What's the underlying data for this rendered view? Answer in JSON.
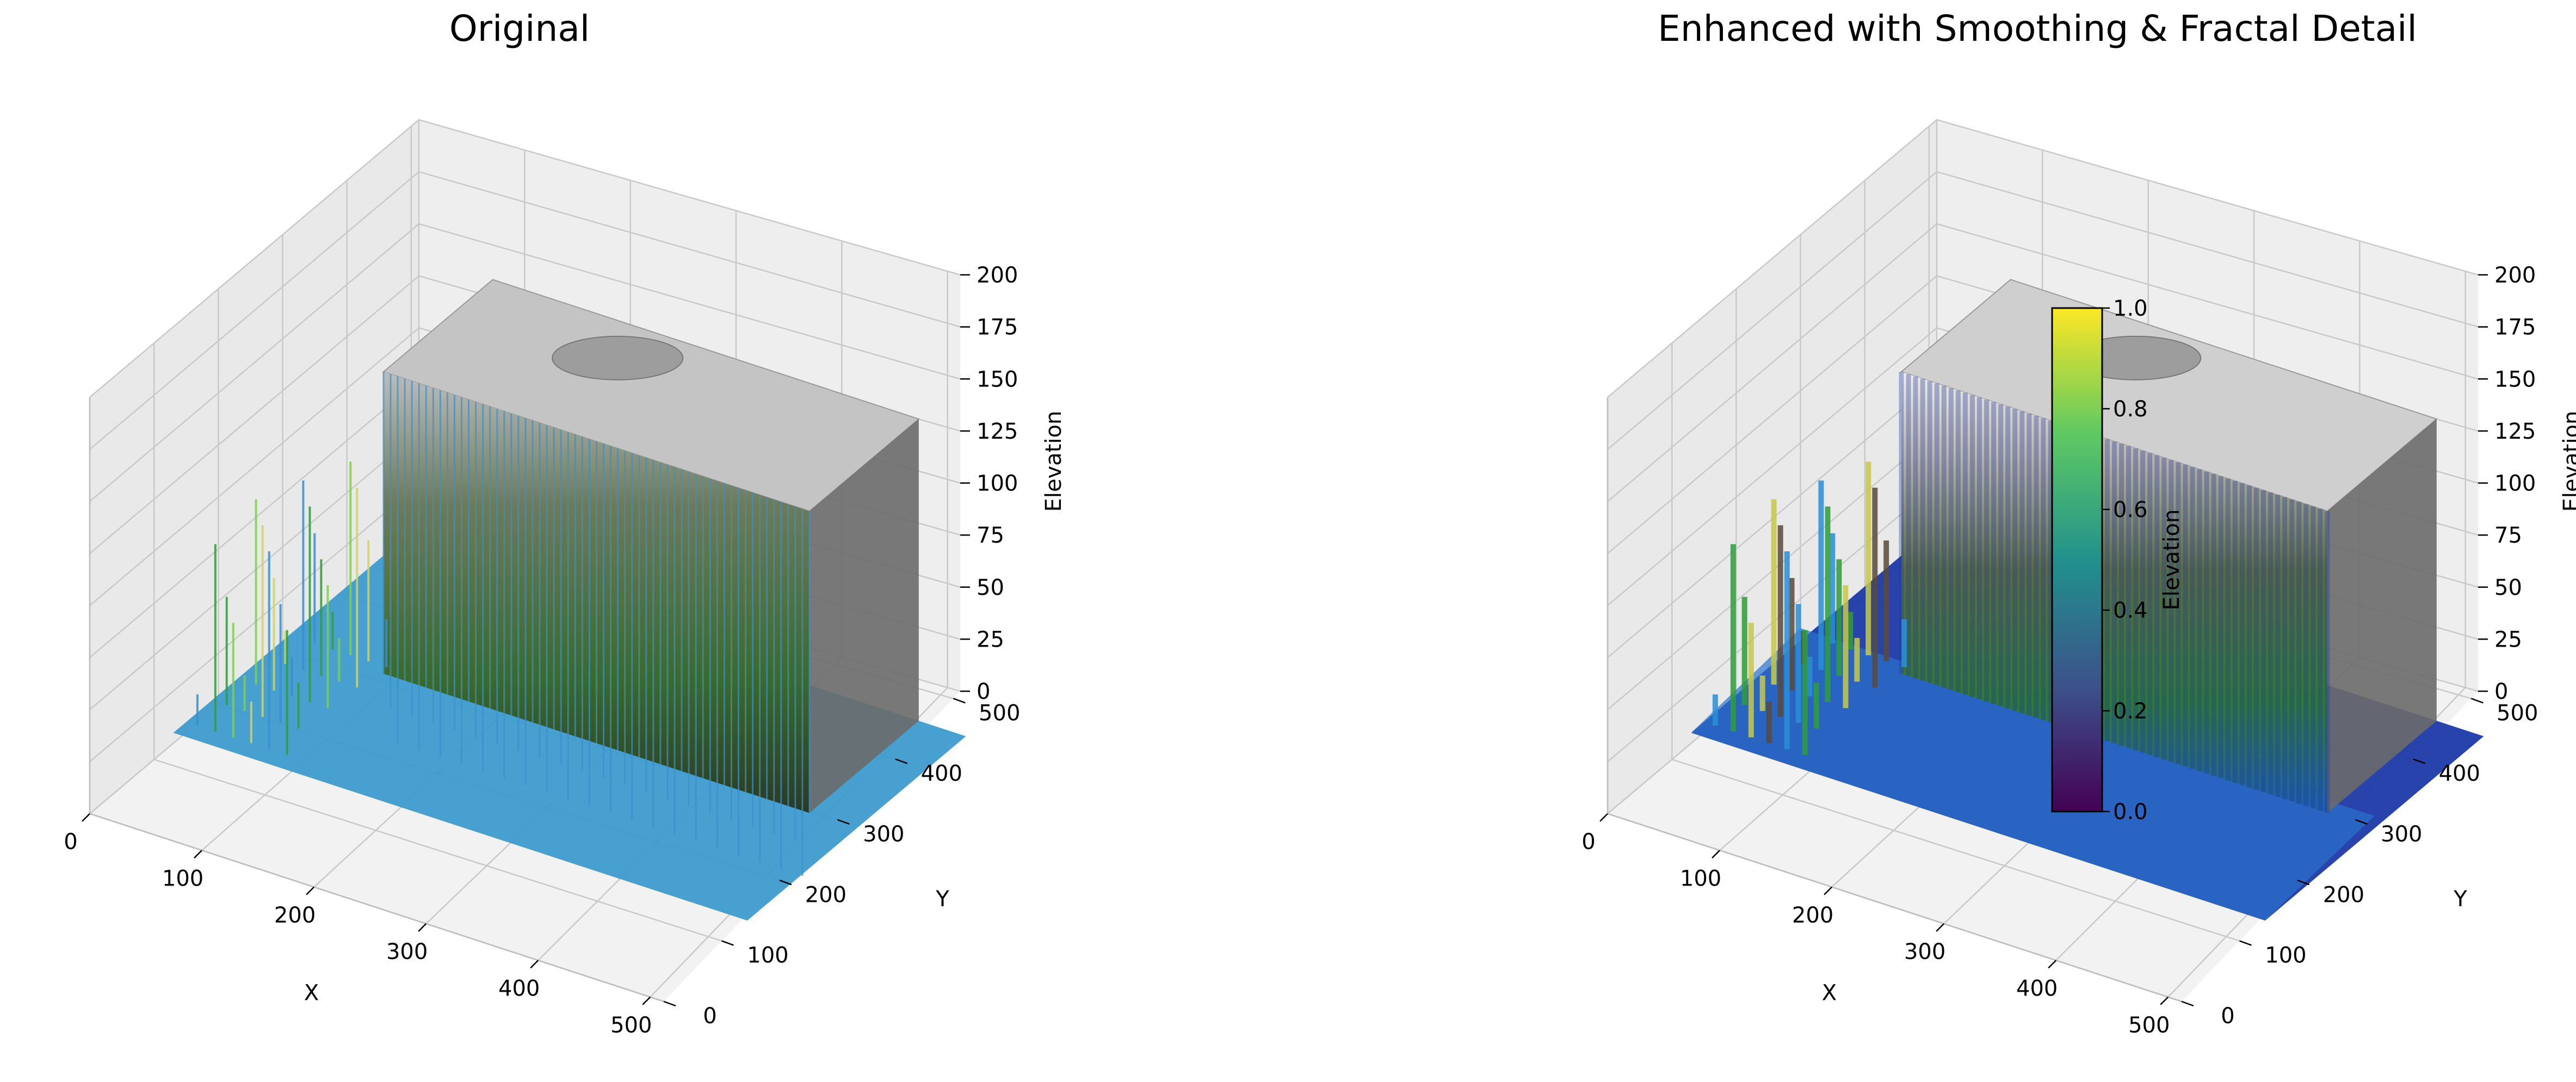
{
  "chart_data": [
    {
      "type": "surface3d",
      "title": "Original",
      "xlabel": "X",
      "ylabel": "Y",
      "zlabel": "Elevation",
      "xlim": [
        0,
        512
      ],
      "ylim": [
        0,
        512
      ],
      "zlim": [
        0,
        200
      ],
      "xticks": [
        "0",
        "100",
        "200",
        "300",
        "400",
        "500"
      ],
      "yticks": [
        "0",
        "100",
        "200",
        "300",
        "400",
        "500"
      ],
      "zticks": [
        "0",
        "25",
        "50",
        "75",
        "100",
        "125",
        "150",
        "175",
        "200"
      ],
      "grid": true,
      "plateau_elevation": 150,
      "base_elevation": 5,
      "colormap_colors": [
        "#3a8fd0",
        "#2e9e3a",
        "#7bd24a",
        "#cfd36a",
        "#8a6a4a",
        "#bdbdbd",
        "#ffffff"
      ]
    },
    {
      "type": "surface3d",
      "title": "Enhanced with Smoothing & Fractal Detail",
      "xlabel": "X",
      "ylabel": "Y",
      "zlabel": "Elevation",
      "xlim": [
        0,
        512
      ],
      "ylim": [
        0,
        512
      ],
      "zlim": [
        0,
        200
      ],
      "xticks": [
        "0",
        "100",
        "200",
        "300",
        "400",
        "500"
      ],
      "yticks": [
        "0",
        "100",
        "200",
        "300",
        "400",
        "500"
      ],
      "zticks": [
        "0",
        "25",
        "50",
        "75",
        "100",
        "125",
        "150",
        "175",
        "200"
      ],
      "grid": true,
      "plateau_elevation": 150,
      "base_elevation": 5,
      "colormap_colors": [
        "#1c3aa8",
        "#2a8fd8",
        "#2e9e3a",
        "#c8c84a",
        "#5a4a3a",
        "#bdbdbd",
        "#ffffff"
      ],
      "colorbar": {
        "label": "Elevation",
        "range": [
          0,
          1
        ],
        "ticks": [
          "0.0",
          "0.2",
          "0.4",
          "0.6",
          "0.8",
          "1.0"
        ],
        "colors": [
          "#440154",
          "#3b528b",
          "#21918c",
          "#5ec962",
          "#fde725"
        ]
      }
    }
  ]
}
